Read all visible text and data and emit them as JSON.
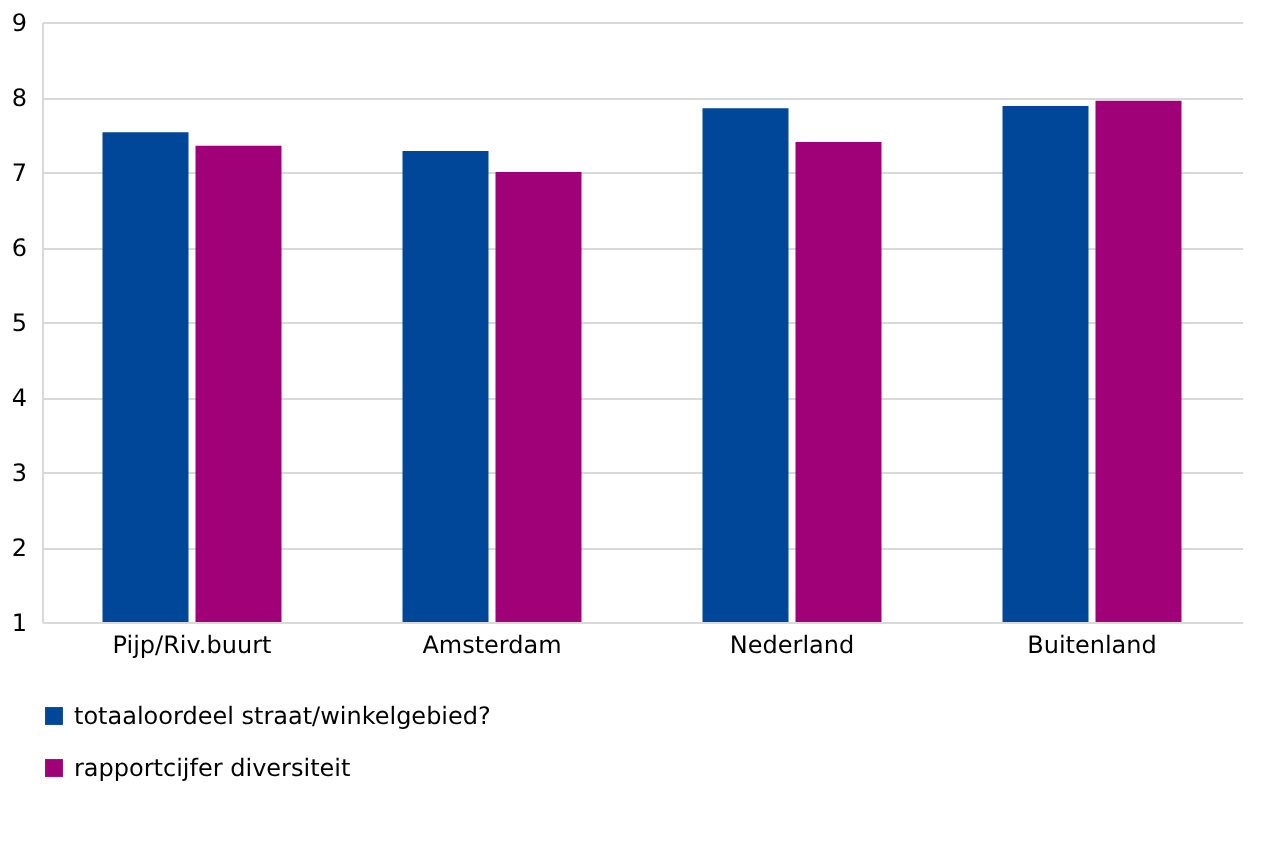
{
  "chart_data": {
    "type": "bar",
    "categories": [
      "Pijp/Riv.buurt",
      "Amsterdam",
      "Nederland",
      "Buitenland"
    ],
    "series": [
      {
        "name": "totaaloordeel straat/winkelgebied?",
        "color": "#004699",
        "values": [
          7.53,
          7.28,
          7.85,
          7.88
        ]
      },
      {
        "name": "rapportcijfer  diversiteit",
        "color": "#a00078",
        "values": [
          7.35,
          7.0,
          7.4,
          7.95
        ]
      }
    ],
    "ylim": [
      1,
      9
    ],
    "yticks": [
      1,
      2,
      3,
      4,
      5,
      6,
      7,
      8,
      9
    ],
    "grid": "y",
    "legend": "bottom left"
  }
}
